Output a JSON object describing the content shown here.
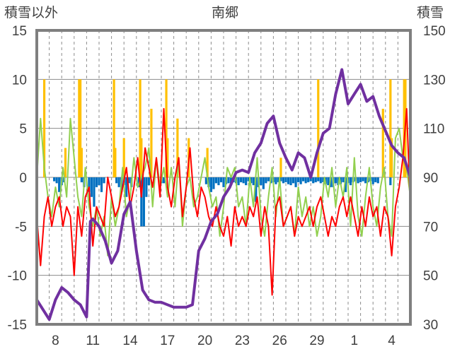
{
  "chart_data": {
    "type": "line",
    "title": "南郷",
    "ylabel_left": "積雪以外",
    "ylabel_right": "積雪",
    "ylim_left": [
      -15,
      15
    ],
    "ylim_right": [
      30,
      150
    ],
    "yticks_left": [
      "15",
      "10",
      "5",
      "0",
      "-5",
      "-10",
      "-15"
    ],
    "yticks_right": [
      "150",
      "130",
      "110",
      "90",
      "70",
      "50",
      "30"
    ],
    "x_tick_labels": [
      "8",
      "11",
      "14",
      "17",
      "20",
      "23",
      "26",
      "29",
      "1",
      "4"
    ],
    "x_tick_positions": [
      1.5,
      4.5,
      7.5,
      10.5,
      13.5,
      16.5,
      19.5,
      22.5,
      25.5,
      28.5
    ],
    "x_range": [
      0,
      30
    ],
    "grid": "vertical dashed daily lines, solid horizontal lines every 5 units",
    "series": [
      {
        "name": "snow_depth",
        "axis": "right",
        "color": "#7030a0",
        "x": [
          0.0,
          0.5,
          1.0,
          1.5,
          2.0,
          2.5,
          3.0,
          3.5,
          4.0,
          4.3,
          4.5,
          5.0,
          5.5,
          6.0,
          6.5,
          7.0,
          7.5,
          8.0,
          8.5,
          9.0,
          9.5,
          10.0,
          10.5,
          11.0,
          11.5,
          12.0,
          12.5,
          13.0,
          13.5,
          14.0,
          14.5,
          15.0,
          15.5,
          16.0,
          16.5,
          17.0,
          17.5,
          18.0,
          18.5,
          19.0,
          19.5,
          20.0,
          20.5,
          21.0,
          21.5,
          22.0,
          22.5,
          23.0,
          23.5,
          24.0,
          24.5,
          25.0,
          25.5,
          26.0,
          26.5,
          27.0,
          27.5,
          28.0,
          28.5,
          29.0,
          29.5,
          30.0
        ],
        "values": [
          40,
          36,
          32,
          40,
          45,
          43,
          40,
          38,
          33,
          72,
          73,
          70,
          64,
          55,
          60,
          75,
          80,
          60,
          44,
          40,
          39,
          39,
          38,
          37,
          37,
          37,
          38,
          60,
          65,
          72,
          75,
          82,
          86,
          92,
          93,
          92,
          100,
          104,
          112,
          115,
          104,
          98,
          93,
          100,
          98,
          90,
          100,
          108,
          110,
          124,
          134,
          120,
          124,
          128,
          121,
          123,
          115,
          109,
          103,
          100,
          98,
          90
        ]
      },
      {
        "name": "temperature",
        "axis": "left",
        "color": "#ff0000",
        "x": [
          0.0,
          0.3,
          0.6,
          0.9,
          1.2,
          1.5,
          1.8,
          2.1,
          2.4,
          2.7,
          3.0,
          3.3,
          3.6,
          3.9,
          4.2,
          4.5,
          4.8,
          5.1,
          5.4,
          5.7,
          6.0,
          6.3,
          6.6,
          6.9,
          7.2,
          7.5,
          7.8,
          8.1,
          8.4,
          8.7,
          9.0,
          9.3,
          9.6,
          9.9,
          10.2,
          10.5,
          10.8,
          11.1,
          11.4,
          11.7,
          12.0,
          12.3,
          12.6,
          12.9,
          13.2,
          13.5,
          13.8,
          14.1,
          14.4,
          14.7,
          15.0,
          15.3,
          15.6,
          15.9,
          16.2,
          16.5,
          16.8,
          17.1,
          17.4,
          17.7,
          18.0,
          18.3,
          18.6,
          18.9,
          19.2,
          19.5,
          19.8,
          20.1,
          20.4,
          20.7,
          21.0,
          21.3,
          21.6,
          21.9,
          22.2,
          22.5,
          22.8,
          23.1,
          23.4,
          23.7,
          24.0,
          24.3,
          24.6,
          24.9,
          25.2,
          25.5,
          25.8,
          26.1,
          26.4,
          26.7,
          27.0,
          27.3,
          27.6,
          27.9,
          28.2,
          28.5,
          28.8,
          29.1,
          29.4,
          29.7,
          30.0
        ],
        "values": [
          -4,
          -9,
          -4,
          -2,
          -5,
          -3,
          -2,
          -5,
          -3,
          -4,
          -10,
          -3,
          -6,
          -2,
          -1,
          -7,
          -3,
          -4,
          -5,
          0,
          -2,
          -4,
          -3,
          -1,
          1,
          -3,
          -1,
          2,
          -2,
          3,
          1,
          -1,
          2,
          -2,
          7,
          -1,
          -3,
          0,
          2,
          -4,
          -1,
          3,
          -2,
          -4,
          -1,
          -2,
          -4,
          -5,
          -3,
          -5,
          -6,
          -4,
          -7,
          -3,
          -5,
          -4,
          -5,
          -3,
          -4,
          -2,
          -6,
          -3,
          -5,
          -12,
          -3,
          -2,
          -5,
          -4,
          -3,
          -6,
          -4,
          -5,
          -4,
          -3,
          -5,
          -3,
          -2,
          -4,
          -6,
          -4,
          -5,
          -3,
          -2,
          -4,
          -2,
          -4,
          -6,
          -3,
          -5,
          -2,
          -4,
          -3,
          -6,
          -3,
          -4,
          -8,
          -3,
          -1,
          2,
          7,
          -3
        ]
      },
      {
        "name": "humidity_index",
        "axis": "left",
        "color": "#92d050",
        "x": [
          0.0,
          0.3,
          0.6,
          0.9,
          1.2,
          1.5,
          1.8,
          2.1,
          2.4,
          2.7,
          3.0,
          3.3,
          3.6,
          3.9,
          4.2,
          4.5,
          4.8,
          5.1,
          5.4,
          5.7,
          6.0,
          6.3,
          6.6,
          6.9,
          7.2,
          7.5,
          7.8,
          8.1,
          8.4,
          8.7,
          9.0,
          9.3,
          9.6,
          9.9,
          10.2,
          10.5,
          10.8,
          11.1,
          11.4,
          11.7,
          12.0,
          12.3,
          12.6,
          12.9,
          13.2,
          13.5,
          13.8,
          14.1,
          14.4,
          14.7,
          15.0,
          15.3,
          15.6,
          15.9,
          16.2,
          16.5,
          16.8,
          17.1,
          17.4,
          17.7,
          18.0,
          18.3,
          18.6,
          18.9,
          19.2,
          19.5,
          19.8,
          20.1,
          20.4,
          20.7,
          21.0,
          21.3,
          21.6,
          21.9,
          22.2,
          22.5,
          22.8,
          23.1,
          23.4,
          23.7,
          24.0,
          24.3,
          24.6,
          24.9,
          25.2,
          25.5,
          25.8,
          26.1,
          26.4,
          26.7,
          27.0,
          27.3,
          27.6,
          27.9,
          28.2,
          28.5,
          28.8,
          29.1,
          29.4,
          29.7,
          30.0
        ],
        "values": [
          0,
          6,
          1,
          -2,
          -4,
          -1,
          -3,
          1,
          -2,
          6,
          2,
          -2,
          -4,
          1,
          -3,
          -5,
          -3,
          -6,
          -4,
          -8,
          -2,
          -5,
          -3,
          1,
          -4,
          -2,
          2,
          -1,
          0,
          1,
          3,
          -3,
          2,
          -1,
          1,
          -2,
          1,
          -3,
          2,
          -5,
          -1,
          0,
          -3,
          -2,
          0,
          2,
          -1,
          -3,
          -2,
          -6,
          -3,
          1,
          0,
          1,
          -3,
          -2,
          -5,
          0,
          -3,
          2,
          -4,
          -6,
          -2,
          1,
          -4,
          0,
          -5,
          -4,
          -3,
          -6,
          -1,
          -4,
          -2,
          -5,
          -3,
          -6,
          -4,
          0,
          -2,
          1,
          -3,
          0,
          -2,
          1,
          -5,
          2,
          -4,
          -6,
          -2,
          1,
          -3,
          -5,
          -1,
          1,
          -4,
          -6,
          4,
          5,
          2,
          1,
          -2
        ]
      }
    ],
    "bars": [
      {
        "name": "snowfall",
        "axis": "left",
        "color": "#ffc000",
        "x": [
          0.6,
          2.3,
          3.4,
          3.5,
          3.6,
          6.2,
          6.3,
          7.0,
          8.3,
          8.4,
          9.1,
          9.2,
          10.4,
          10.5,
          11.3,
          12.2,
          13.7,
          19.6,
          22.6,
          27.8,
          28.4,
          28.5,
          29.5,
          29.6
        ],
        "values": [
          10,
          3,
          10,
          10,
          3,
          10,
          3,
          4,
          10,
          4,
          1,
          7,
          10,
          4,
          6,
          4,
          3,
          2,
          10,
          7,
          10,
          4,
          10,
          10
        ]
      },
      {
        "name": "negative_bars",
        "axis": "left",
        "color": "#0070c0",
        "x": [
          1.4,
          1.6,
          1.8,
          2.0,
          2.2,
          3.6,
          3.8,
          4.2,
          4.4,
          4.6,
          4.8,
          5.0,
          5.2,
          5.4,
          6.4,
          6.6,
          6.8,
          7.0,
          7.2,
          7.4,
          7.6,
          8.2,
          8.4,
          8.6,
          8.8,
          9.0,
          10.0,
          10.2,
          13.6,
          13.8,
          14.0,
          14.2,
          14.4,
          14.6,
          14.8,
          15.0,
          15.2,
          15.4,
          15.6,
          15.8,
          16.0,
          16.2,
          16.4,
          16.6,
          16.8,
          17.0,
          17.2,
          17.4,
          17.6,
          17.8,
          18.0,
          18.2,
          18.4,
          18.6,
          18.8,
          19.0,
          19.2,
          19.4,
          19.6,
          19.8,
          20.0,
          20.2,
          20.4,
          20.6,
          20.8,
          21.0,
          21.2,
          21.4,
          21.6,
          21.8,
          22.0,
          22.2,
          22.4,
          22.6,
          22.8,
          23.0,
          23.2,
          23.4,
          23.6,
          23.8,
          24.0,
          24.2,
          24.4,
          24.6,
          24.8,
          25.0,
          25.2,
          25.4,
          25.6,
          25.8,
          26.0,
          26.2,
          26.4,
          26.6,
          26.8,
          27.0,
          27.2,
          27.4,
          28.4
        ],
        "values": [
          -0.4,
          -0.6,
          -1.5,
          -0.8,
          -0.5,
          -0.5,
          -1,
          -1.5,
          -2,
          -3,
          -1,
          -0.8,
          -1.5,
          -0.6,
          -0.6,
          -1,
          -1.5,
          -0.8,
          -2,
          -0.6,
          -1,
          -1,
          -5,
          -5,
          -2,
          -0.8,
          -0.6,
          -0.6,
          -0.7,
          -1,
          -1.5,
          -1.2,
          -0.6,
          -0.8,
          -0.5,
          -1,
          -0.7,
          -0.6,
          -0.8,
          -0.5,
          -0.6,
          -0.8,
          -0.5,
          -0.6,
          -0.8,
          -0.4,
          -0.6,
          -0.8,
          -2.5,
          -1,
          -0.8,
          -1.2,
          -0.6,
          -0.4,
          -0.6,
          -0.5,
          -0.7,
          -0.5,
          -0.4,
          -0.6,
          -0.5,
          -0.7,
          -0.8,
          -0.6,
          -1,
          -0.5,
          -0.7,
          -0.4,
          -0.6,
          -0.5,
          -0.4,
          -0.6,
          -0.5,
          -0.4,
          -0.6,
          -0.5,
          -0.7,
          -0.8,
          -1,
          -1,
          -0.6,
          -0.8,
          -0.7,
          -0.5,
          -1.5,
          -0.6,
          -0.8,
          -0.5,
          -0.4,
          -0.6,
          -0.5,
          -0.4,
          -0.6,
          -0.5,
          -0.4,
          -0.7,
          -0.5,
          -0.6,
          -0.8
        ]
      }
    ]
  }
}
